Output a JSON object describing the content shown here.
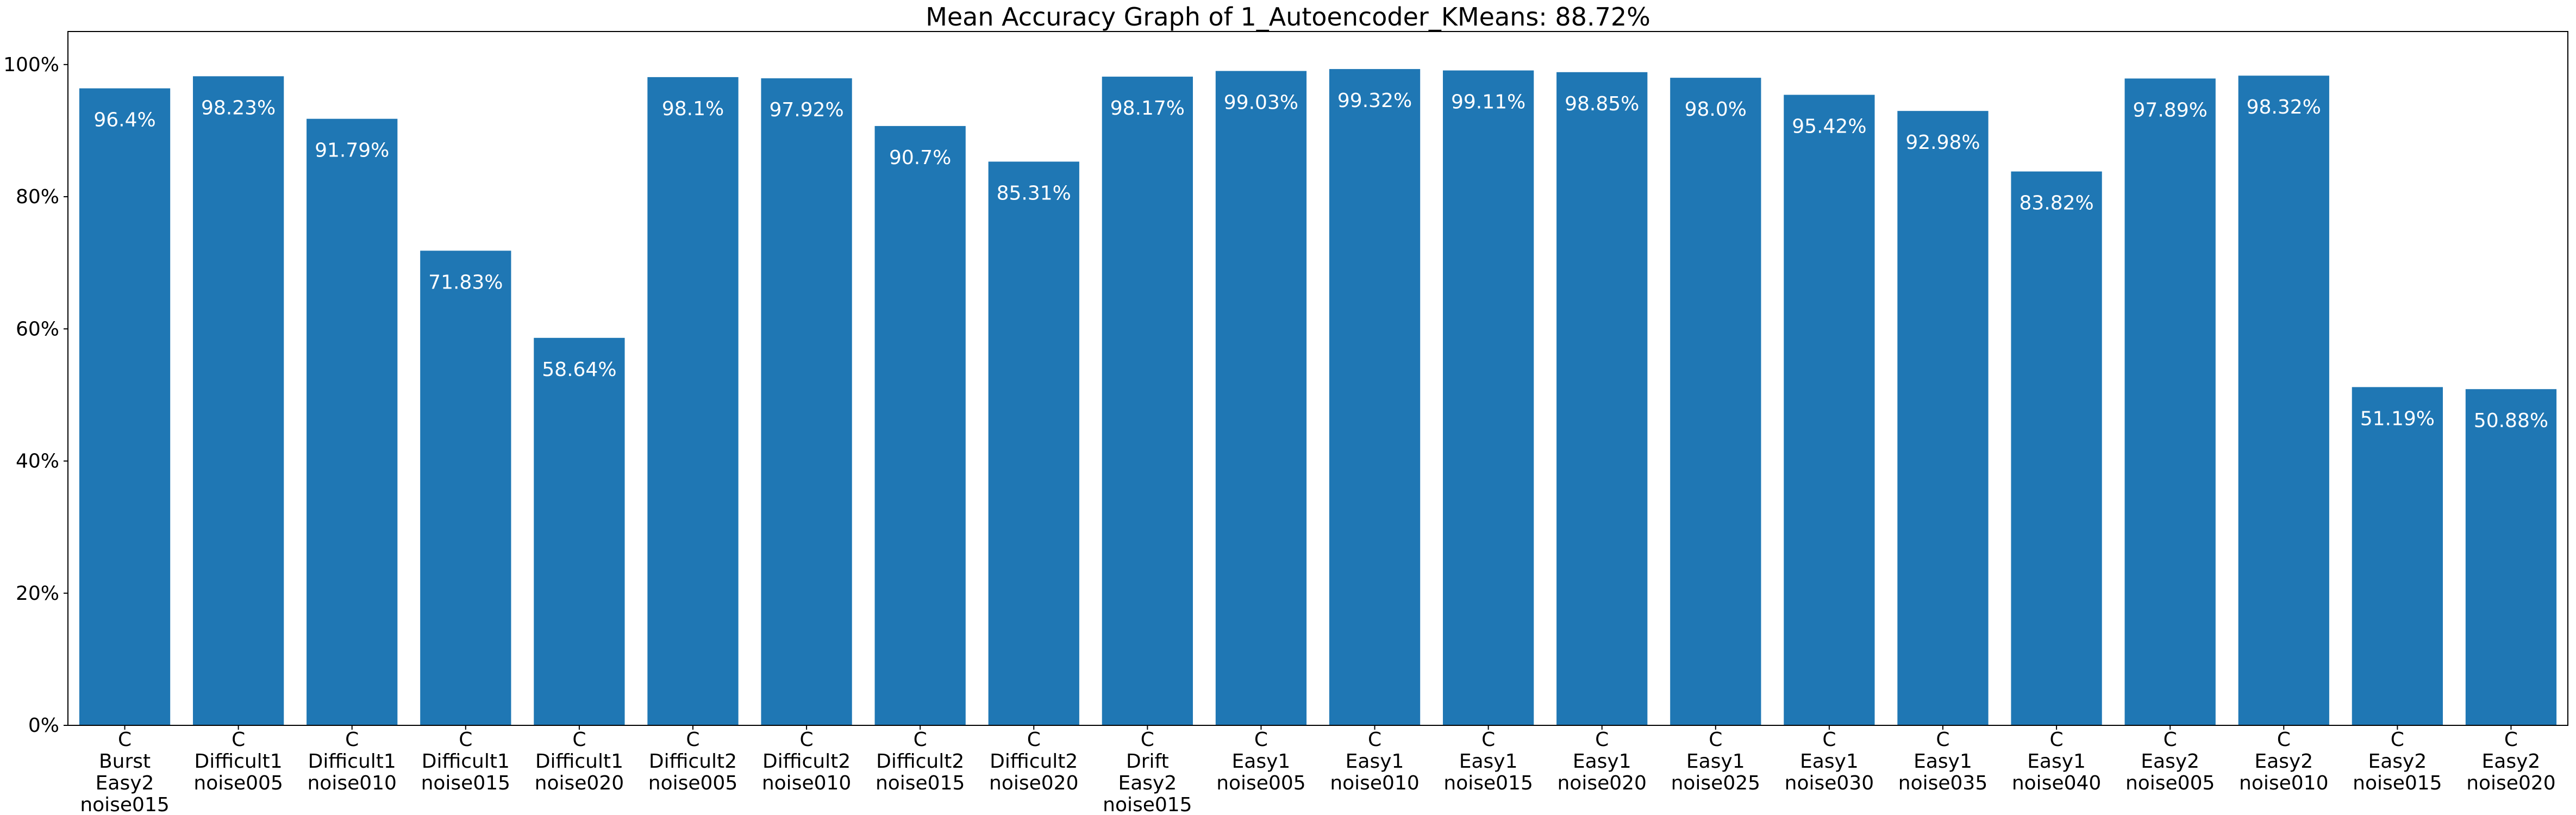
{
  "chart_data": {
    "type": "bar",
    "title": "Mean Accuracy Graph of 1_Autoencoder_KMeans: 88.72%",
    "xlabel": "",
    "ylabel": "",
    "ylim": [
      0,
      1.0
    ],
    "yticks": [
      0,
      0.2,
      0.4,
      0.6,
      0.8,
      1.0
    ],
    "ytick_labels": [
      "0%",
      "20%",
      "40%",
      "60%",
      "80%",
      "100%"
    ],
    "grid": false,
    "bar_color": "#1f77b4",
    "label_color": "#ffffff",
    "categories": [
      [
        "C",
        "Burst",
        "Easy2",
        "noise015"
      ],
      [
        "C",
        "Difficult1",
        "noise005"
      ],
      [
        "C",
        "Difficult1",
        "noise010"
      ],
      [
        "C",
        "Difficult1",
        "noise015"
      ],
      [
        "C",
        "Difficult1",
        "noise020"
      ],
      [
        "C",
        "Difficult2",
        "noise005"
      ],
      [
        "C",
        "Difficult2",
        "noise010"
      ],
      [
        "C",
        "Difficult2",
        "noise015"
      ],
      [
        "C",
        "Difficult2",
        "noise020"
      ],
      [
        "C",
        "Drift",
        "Easy2",
        "noise015"
      ],
      [
        "C",
        "Easy1",
        "noise005"
      ],
      [
        "C",
        "Easy1",
        "noise010"
      ],
      [
        "C",
        "Easy1",
        "noise015"
      ],
      [
        "C",
        "Easy1",
        "noise020"
      ],
      [
        "C",
        "Easy1",
        "noise025"
      ],
      [
        "C",
        "Easy1",
        "noise030"
      ],
      [
        "C",
        "Easy1",
        "noise035"
      ],
      [
        "C",
        "Easy1",
        "noise040"
      ],
      [
        "C",
        "Easy2",
        "noise005"
      ],
      [
        "C",
        "Easy2",
        "noise010"
      ],
      [
        "C",
        "Easy2",
        "noise015"
      ],
      [
        "C",
        "Easy2",
        "noise020"
      ]
    ],
    "values": [
      0.964,
      0.9823,
      0.9179,
      0.7183,
      0.5864,
      0.981,
      0.9792,
      0.907,
      0.8531,
      0.9817,
      0.9903,
      0.9932,
      0.9911,
      0.9885,
      0.98,
      0.9542,
      0.9298,
      0.8382,
      0.9789,
      0.9832,
      0.5119,
      0.5088
    ],
    "value_labels": [
      "96.4%",
      "98.23%",
      "91.79%",
      "71.83%",
      "58.64%",
      "98.1%",
      "97.92%",
      "90.7%",
      "85.31%",
      "98.17%",
      "99.03%",
      "99.32%",
      "99.11%",
      "98.85%",
      "98.0%",
      "95.42%",
      "92.98%",
      "83.82%",
      "97.89%",
      "98.32%",
      "51.19%",
      "50.88%"
    ]
  }
}
